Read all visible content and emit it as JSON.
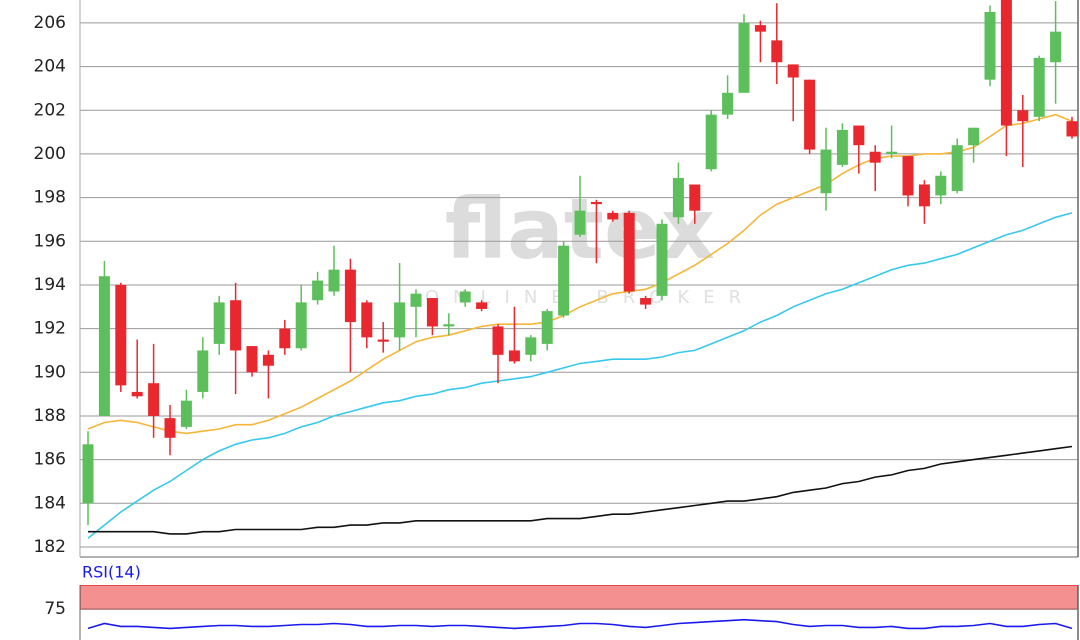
{
  "chart_data": [
    {
      "type": "candlestick",
      "watermark": "flatex",
      "watermark_subtitle": "ONLINE BROKER",
      "open": [
        184.0,
        188.0,
        194.0,
        189.1,
        189.5,
        187.9,
        187.5,
        189.1,
        191.3,
        193.3,
        191.2,
        190.8,
        192.0,
        191.1,
        193.3,
        193.7,
        194.7,
        193.2,
        191.5,
        191.6,
        193.0,
        193.4,
        192.1,
        193.2,
        193.2,
        192.1,
        191.0,
        190.8,
        191.3,
        192.6,
        196.3,
        197.8,
        197.3,
        197.3,
        193.4,
        193.5,
        197.1,
        198.6,
        199.3,
        201.8,
        202.8,
        205.9,
        205.2,
        204.1,
        203.4,
        198.2,
        199.5,
        201.3,
        200.1,
        200.0,
        199.9,
        198.6,
        198.1,
        198.3,
        200.4,
        203.4,
        207.8,
        202.0,
        201.7,
        204.2,
        201.5
      ],
      "high": [
        187.3,
        195.1,
        194.1,
        191.5,
        191.3,
        188.5,
        189.2,
        191.6,
        193.5,
        194.1,
        191.2,
        191.0,
        192.4,
        194.0,
        194.6,
        195.8,
        195.2,
        193.3,
        192.3,
        195.0,
        193.8,
        193.4,
        192.7,
        193.8,
        193.3,
        192.2,
        193.0,
        191.7,
        192.9,
        196.0,
        199.0,
        197.9,
        197.4,
        197.4,
        193.5,
        197.0,
        199.6,
        198.6,
        202.0,
        203.6,
        206.4,
        206.1,
        206.9,
        204.1,
        203.4,
        201.2,
        201.4,
        201.3,
        200.4,
        201.3,
        199.9,
        198.8,
        199.2,
        200.7,
        201.2,
        206.8,
        207.8,
        202.7,
        204.5,
        207.0,
        201.7
      ],
      "low": [
        183.0,
        188.0,
        189.1,
        188.8,
        187.0,
        186.2,
        187.4,
        188.8,
        190.8,
        189.0,
        189.8,
        188.8,
        190.8,
        191.0,
        193.1,
        193.5,
        190.0,
        191.1,
        190.9,
        191.0,
        191.6,
        191.7,
        191.7,
        193.0,
        192.8,
        189.5,
        190.4,
        190.5,
        191.0,
        192.5,
        196.2,
        195.0,
        196.9,
        193.6,
        192.9,
        193.3,
        196.8,
        196.8,
        199.2,
        201.6,
        202.8,
        204.2,
        203.2,
        201.5,
        200.0,
        197.4,
        199.4,
        199.1,
        198.3,
        199.8,
        197.6,
        196.8,
        197.7,
        198.2,
        199.6,
        203.1,
        199.9,
        199.4,
        201.5,
        202.3,
        200.7
      ],
      "close": [
        186.7,
        194.4,
        189.4,
        188.9,
        188.0,
        187.0,
        188.7,
        191.0,
        193.2,
        191.0,
        190.0,
        190.3,
        191.1,
        193.2,
        194.2,
        194.7,
        192.3,
        191.6,
        191.4,
        193.2,
        193.6,
        192.1,
        192.2,
        193.7,
        192.9,
        190.8,
        190.5,
        191.6,
        192.8,
        195.8,
        197.4,
        197.7,
        197.0,
        193.7,
        193.1,
        196.8,
        198.9,
        197.4,
        201.8,
        202.8,
        206.0,
        205.6,
        204.2,
        203.5,
        200.2,
        200.2,
        201.1,
        200.4,
        199.6,
        200.1,
        198.1,
        197.6,
        199.0,
        200.4,
        201.2,
        206.5,
        201.3,
        201.5,
        204.4,
        205.6,
        200.8
      ],
      "up_color": "#5cbf5c",
      "down_color": "#e8282e",
      "series": [
        {
          "color": "#f5b63a",
          "values": [
            187.4,
            187.7,
            187.8,
            187.7,
            187.5,
            187.3,
            187.2,
            187.3,
            187.4,
            187.6,
            187.6,
            187.8,
            188.1,
            188.4,
            188.8,
            189.2,
            189.6,
            190.1,
            190.6,
            191.0,
            191.4,
            191.6,
            191.7,
            191.9,
            192.1,
            192.2,
            192.2,
            192.2,
            192.3,
            192.6,
            193.0,
            193.3,
            193.6,
            193.7,
            193.8,
            194.1,
            194.5,
            194.9,
            195.4,
            195.9,
            196.5,
            197.2,
            197.7,
            198.0,
            198.3,
            198.6,
            199.1,
            199.5,
            199.8,
            199.9,
            199.9,
            200.0,
            200.0,
            200.1,
            200.3,
            200.8,
            201.3,
            201.4,
            201.6,
            201.8,
            201.5
          ]
        },
        {
          "color": "#38c8ee",
          "values": [
            182.4,
            183.0,
            183.6,
            184.1,
            184.6,
            185.0,
            185.5,
            186.0,
            186.4,
            186.7,
            186.9,
            187.0,
            187.2,
            187.5,
            187.7,
            188.0,
            188.2,
            188.4,
            188.6,
            188.7,
            188.9,
            189.0,
            189.2,
            189.3,
            189.5,
            189.6,
            189.7,
            189.8,
            190.0,
            190.2,
            190.4,
            190.5,
            190.6,
            190.6,
            190.6,
            190.7,
            190.9,
            191.0,
            191.3,
            191.6,
            191.9,
            192.3,
            192.6,
            193.0,
            193.3,
            193.6,
            193.8,
            194.1,
            194.4,
            194.7,
            194.9,
            195.0,
            195.2,
            195.4,
            195.7,
            196.0,
            196.3,
            196.5,
            196.8,
            197.1,
            197.3
          ]
        },
        {
          "color": "#111111",
          "values": [
            182.7,
            182.7,
            182.7,
            182.7,
            182.7,
            182.6,
            182.6,
            182.7,
            182.7,
            182.8,
            182.8,
            182.8,
            182.8,
            182.8,
            182.9,
            182.9,
            183.0,
            183.0,
            183.1,
            183.1,
            183.2,
            183.2,
            183.2,
            183.2,
            183.2,
            183.2,
            183.2,
            183.2,
            183.3,
            183.3,
            183.3,
            183.4,
            183.5,
            183.5,
            183.6,
            183.7,
            183.8,
            183.9,
            184.0,
            184.1,
            184.1,
            184.2,
            184.3,
            184.5,
            184.6,
            184.7,
            184.9,
            185.0,
            185.2,
            185.3,
            185.5,
            185.6,
            185.8,
            185.9,
            186.0,
            186.1,
            186.2,
            186.3,
            186.4,
            186.5,
            186.6
          ]
        }
      ],
      "ylim": [
        181.54,
        207.05
      ],
      "yticks": [
        182,
        184,
        186,
        188,
        190,
        192,
        194,
        196,
        198,
        200,
        202,
        204,
        206
      ],
      "grid": true
    },
    {
      "type": "line",
      "title": "RSI(14)",
      "band": [
        75,
        100
      ],
      "band_color": "#f49090",
      "series": [
        {
          "color": "#1a1aee",
          "values": [
            55,
            60,
            57,
            57,
            56,
            55,
            56,
            57,
            58,
            58,
            57,
            57,
            58,
            59,
            59,
            60,
            59,
            57,
            57,
            58,
            58,
            57,
            58,
            58,
            57,
            56,
            55,
            56,
            57,
            58,
            60,
            60,
            59,
            57,
            56,
            58,
            60,
            61,
            62,
            63,
            64,
            63,
            62,
            59,
            57,
            58,
            58,
            56,
            56,
            57,
            55,
            55,
            57,
            57,
            58,
            60,
            57,
            57,
            59,
            60,
            55
          ]
        }
      ],
      "ylim": [
        45,
        100
      ],
      "yticks": [
        75
      ]
    }
  ]
}
